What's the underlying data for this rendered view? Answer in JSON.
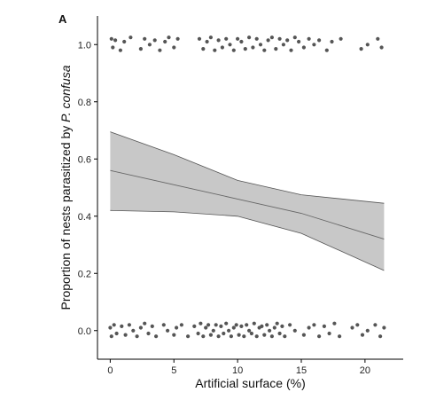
{
  "chart_data": {
    "type": "scatter",
    "panel_label": "A",
    "xlabel": "Artificial surface (%)",
    "ylabel_prefix": "Proportion of nests parasitized by ",
    "ylabel_species": "P. confusa",
    "xlim": [
      -1,
      23
    ],
    "ylim": [
      -0.1,
      1.1
    ],
    "x_ticks": [
      0,
      5,
      10,
      15,
      20
    ],
    "y_ticks": [
      0.0,
      0.2,
      0.4,
      0.6,
      0.8,
      1.0
    ],
    "y_tick_labels": [
      "0.0",
      "0.2",
      "0.4",
      "0.6",
      "0.8",
      "1.0"
    ],
    "fit_line": {
      "x": [
        0,
        5,
        10,
        15,
        21.5
      ],
      "y": [
        0.56,
        0.51,
        0.46,
        0.41,
        0.32
      ]
    },
    "confidence_band": {
      "x": [
        0,
        5,
        10,
        15,
        21.5
      ],
      "lower": [
        0.42,
        0.415,
        0.4,
        0.34,
        0.21
      ],
      "upper": [
        0.695,
        0.615,
        0.525,
        0.475,
        0.445
      ]
    },
    "points_top": {
      "y": 1.0,
      "x": [
        0.1,
        0.2,
        0.4,
        0.8,
        1.1,
        1.6,
        2.4,
        2.7,
        3.1,
        3.5,
        3.9,
        4.3,
        4.6,
        5.0,
        5.3,
        7.0,
        7.3,
        7.6,
        7.9,
        8.2,
        8.5,
        8.8,
        9.1,
        9.4,
        9.7,
        10.0,
        10.3,
        10.6,
        10.9,
        11.2,
        11.5,
        11.8,
        12.1,
        12.4,
        12.7,
        13.0,
        13.3,
        13.6,
        13.9,
        14.2,
        14.5,
        14.8,
        15.2,
        15.6,
        16.0,
        16.4,
        17.0,
        17.4,
        18.1,
        19.7,
        20.2,
        21.0,
        21.3
      ],
      "jitter": [
        0.02,
        -0.01,
        0.015,
        -0.02,
        0.01,
        0.025,
        -0.015,
        0.02,
        0.0,
        0.015,
        -0.02,
        0.01,
        0.025,
        -0.01,
        0.02,
        0.02,
        -0.015,
        0.01,
        0.025,
        -0.02,
        0.015,
        -0.01,
        0.02,
        0.0,
        -0.02,
        0.02,
        0.01,
        -0.015,
        0.025,
        -0.01,
        0.02,
        0.0,
        -0.02,
        0.015,
        0.025,
        -0.015,
        0.02,
        0.0,
        0.015,
        -0.02,
        0.025,
        0.01,
        -0.01,
        0.02,
        0.0,
        0.015,
        -0.02,
        0.01,
        0.02,
        -0.015,
        0.0,
        0.02,
        -0.01
      ]
    },
    "points_bottom": {
      "y": 0.0,
      "x": [
        0.0,
        0.1,
        0.3,
        0.5,
        0.9,
        1.2,
        1.5,
        1.8,
        2.1,
        2.4,
        2.7,
        3.0,
        3.3,
        3.6,
        4.2,
        4.5,
        5.0,
        5.2,
        5.6,
        6.1,
        6.6,
        6.9,
        7.1,
        7.3,
        7.5,
        7.7,
        7.9,
        8.1,
        8.3,
        8.5,
        8.7,
        8.9,
        9.1,
        9.3,
        9.5,
        9.7,
        9.9,
        10.1,
        10.3,
        10.5,
        10.7,
        10.9,
        11.1,
        11.3,
        11.5,
        11.7,
        11.9,
        12.1,
        12.3,
        12.5,
        12.7,
        12.9,
        13.1,
        13.3,
        13.5,
        13.7,
        14.1,
        14.5,
        15.2,
        15.6,
        16.0,
        16.4,
        16.8,
        17.2,
        17.6,
        18.0,
        19.0,
        19.4,
        19.8,
        20.2,
        20.8,
        21.2,
        21.5
      ],
      "jitter": [
        0.01,
        -0.02,
        0.02,
        -0.01,
        0.015,
        -0.015,
        0.02,
        0.0,
        -0.02,
        0.01,
        0.025,
        -0.01,
        0.015,
        -0.02,
        0.02,
        0.0,
        -0.015,
        0.01,
        0.02,
        -0.02,
        0.015,
        -0.01,
        0.025,
        -0.02,
        0.01,
        0.02,
        -0.015,
        0.0,
        0.02,
        -0.02,
        0.015,
        -0.01,
        0.025,
        0.0,
        -0.02,
        0.01,
        0.02,
        -0.015,
        0.015,
        -0.02,
        0.02,
        0.0,
        -0.01,
        0.025,
        -0.02,
        0.01,
        0.015,
        -0.015,
        0.02,
        0.0,
        -0.02,
        0.01,
        0.025,
        -0.01,
        0.015,
        -0.02,
        0.02,
        0.0,
        -0.015,
        0.01,
        0.02,
        -0.02,
        0.015,
        -0.01,
        0.025,
        -0.02,
        0.01,
        0.02,
        -0.015,
        0.0,
        0.02,
        -0.02,
        0.01
      ]
    },
    "colors": {
      "points": "#555555",
      "band_fill": "#c8c8c8",
      "band_edge": "#555555",
      "fit_line": "#666666",
      "axis": "#000000"
    },
    "grid": false,
    "legend": "none"
  }
}
